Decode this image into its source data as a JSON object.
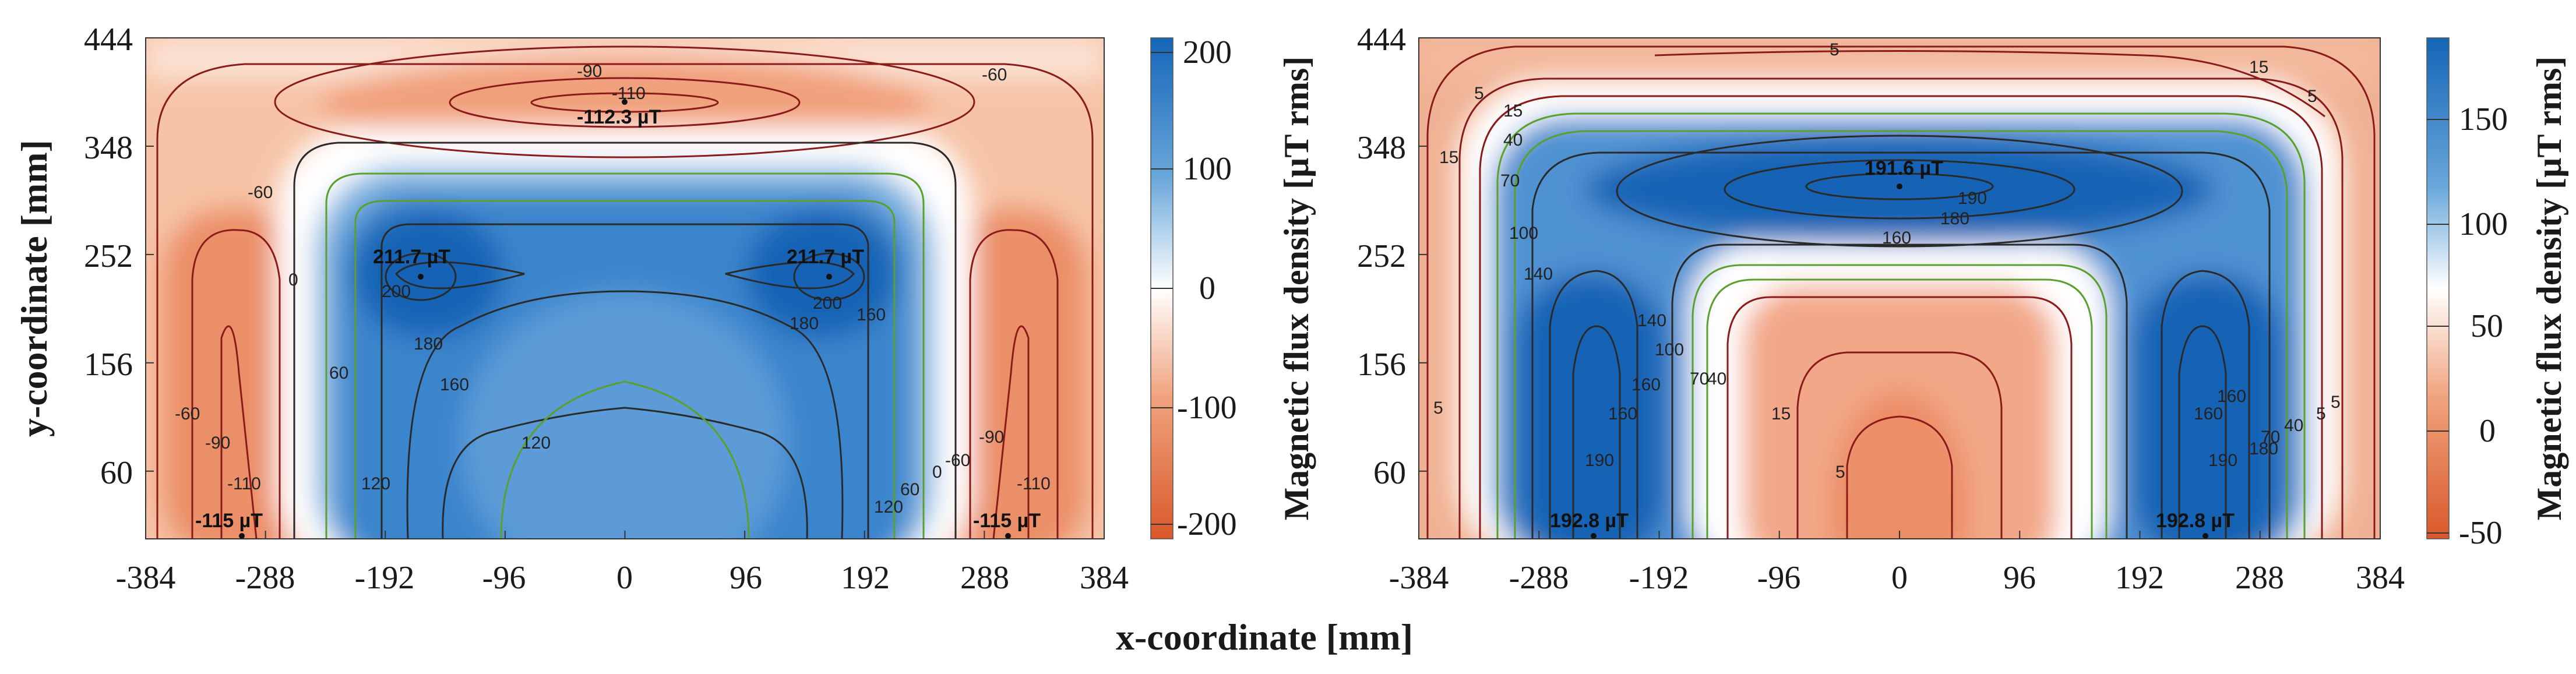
{
  "x_axis_label": "x-coordinate [mm]",
  "chart_data": [
    {
      "type": "heatmap",
      "title": "",
      "xlabel": "x-coordinate [mm]",
      "ylabel": "y-coordinate [mm]",
      "x_ticks": [
        "-384",
        "-288",
        "-192",
        "-96",
        "0",
        "96",
        "192",
        "288",
        "384"
      ],
      "y_ticks": [
        "60",
        "156",
        "252",
        "348",
        "444"
      ],
      "xlim": [
        -384,
        384
      ],
      "ylim": [
        0,
        444
      ],
      "colorbar": {
        "label": "Magnetic flux density [µT rms]",
        "ticks": [
          "200",
          "100",
          "0",
          "-100",
          "-200"
        ],
        "range": [
          -215,
          215
        ],
        "colors": {
          "low": "#d9582a",
          "mid": "#ffffff",
          "high": "#1565b8"
        }
      },
      "contour_levels": [
        {
          "label": "-110",
          "color": "#8b1a1a"
        },
        {
          "label": "-90",
          "color": "#8b1a1a"
        },
        {
          "label": "-60",
          "color": "#8b1a1a"
        },
        {
          "label": "0",
          "color": "#2a2a2a"
        },
        {
          "label": "60",
          "color": "#5aa02c"
        },
        {
          "label": "120",
          "color": "#2a2a2a"
        },
        {
          "label": "160",
          "color": "#2a2a2a"
        },
        {
          "label": "180",
          "color": "#2a2a2a"
        },
        {
          "label": "200",
          "color": "#2a2a2a"
        }
      ],
      "annotations": [
        {
          "text": "-112.3 µT",
          "x": 0,
          "y": 392
        },
        {
          "text": "211.7 µT",
          "x": -220,
          "y": 262
        },
        {
          "text": "211.7 µT",
          "x": 180,
          "y": 262
        },
        {
          "text": "-115 µT",
          "x": -318,
          "y": 10
        },
        {
          "text": "-115 µT",
          "x": 318,
          "y": 10
        }
      ]
    },
    {
      "type": "heatmap",
      "title": "",
      "xlabel": "x-coordinate [mm]",
      "ylabel": "",
      "x_ticks": [
        "-384",
        "-288",
        "-192",
        "-96",
        "0",
        "96",
        "192",
        "288",
        "384"
      ],
      "y_ticks": [
        "60",
        "156",
        "252",
        "348",
        "444"
      ],
      "xlim": [
        -384,
        384
      ],
      "ylim": [
        0,
        444
      ],
      "colorbar": {
        "label": "Magnetic flux density [µT rms]",
        "ticks": [
          "150",
          "100",
          "50",
          "0",
          "-50"
        ],
        "range": [
          -50,
          190
        ],
        "colors": {
          "low": "#d9582a",
          "mid": "#ffffff",
          "high": "#1565b8"
        }
      },
      "contour_levels": [
        {
          "label": "5",
          "color": "#8b1a1a"
        },
        {
          "label": "15",
          "color": "#8b1a1a"
        },
        {
          "label": "40",
          "color": "#8b1a1a"
        },
        {
          "label": "70",
          "color": "#5aa02c"
        },
        {
          "label": "100",
          "color": "#5aa02c"
        },
        {
          "label": "140",
          "color": "#2a2a2a"
        },
        {
          "label": "160",
          "color": "#2a2a2a"
        },
        {
          "label": "180",
          "color": "#2a2a2a"
        },
        {
          "label": "190",
          "color": "#2a2a2a"
        }
      ],
      "annotations": [
        {
          "text": "191.6 µT",
          "x": 0,
          "y": 325
        },
        {
          "text": "192.8 µT",
          "x": -256,
          "y": 10
        },
        {
          "text": "192.8 µT",
          "x": 256,
          "y": 10
        }
      ]
    }
  ]
}
